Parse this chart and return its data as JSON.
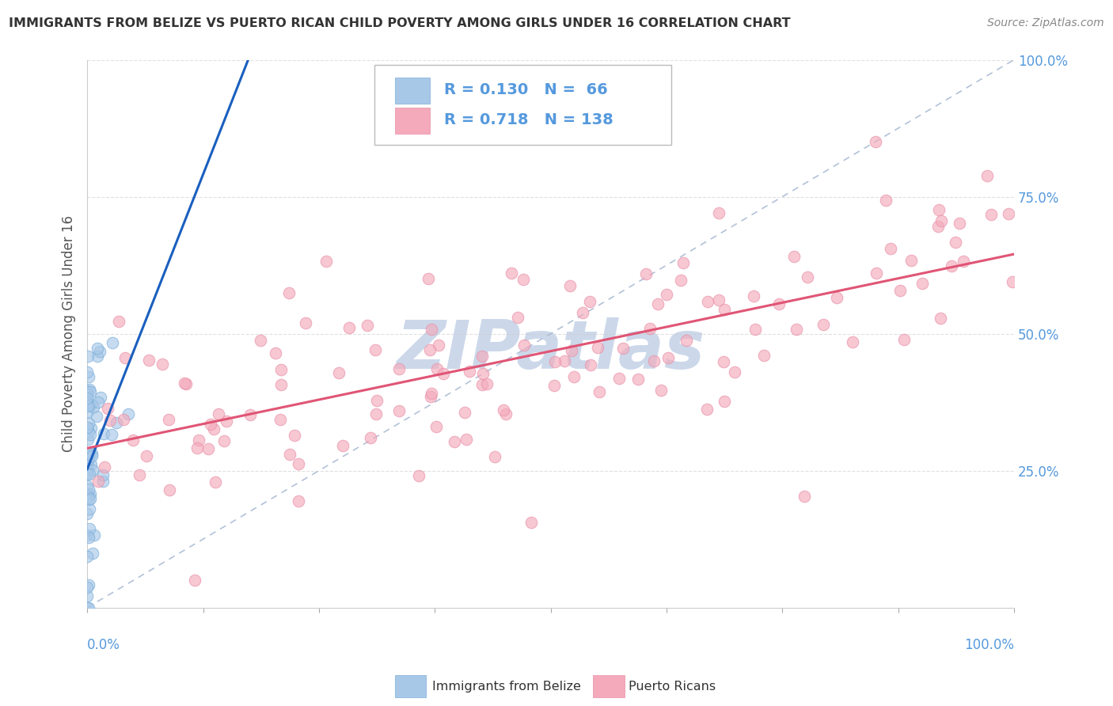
{
  "title": "IMMIGRANTS FROM BELIZE VS PUERTO RICAN CHILD POVERTY AMONG GIRLS UNDER 16 CORRELATION CHART",
  "source": "Source: ZipAtlas.com",
  "ylabel": "Child Poverty Among Girls Under 16",
  "xlim": [
    0.0,
    1.0
  ],
  "ylim": [
    0.0,
    1.0
  ],
  "scatter_blue_color": "#a8c8e8",
  "scatter_pink_color": "#f4aabb",
  "line_blue_color": "#1a5fbf",
  "line_pink_color": "#e05575",
  "diag_line_color": "#aabbd4",
  "watermark_color": "#ccd8ea",
  "background_color": "#ffffff",
  "grid_color": "#cccccc",
  "title_color": "#333333",
  "ytick_color": "#5599dd",
  "xtick_color": "#5599dd",
  "ylabel_color": "#555555",
  "legend_box_color": "#dddddd",
  "blue_N": 66,
  "pink_N": 138,
  "blue_R": 0.13,
  "pink_R": 0.718
}
